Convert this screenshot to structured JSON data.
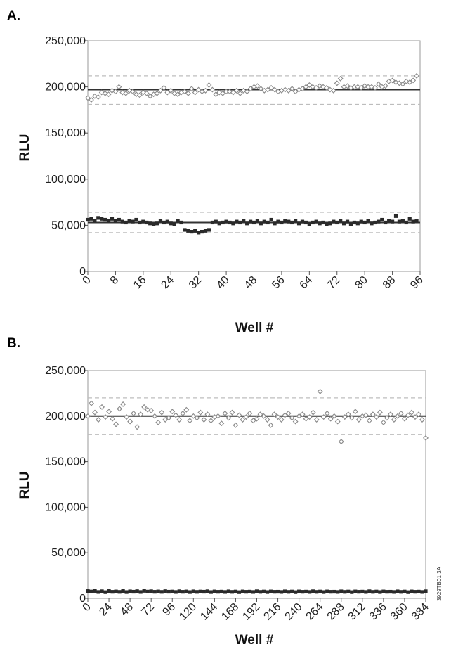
{
  "figure_code": "3929TB01 3A",
  "colors": {
    "high_series": "#8a8a8a",
    "low_series": "#2a2a2a",
    "mean_line": "#333333",
    "sd_line": "#bdbdbd",
    "frame": "#9a9a9a"
  },
  "chart_data": [
    {
      "panel_label": "A.",
      "type": "scatter",
      "xlabel": "Well #",
      "ylabel": "RLU",
      "xlim": [
        0,
        96
      ],
      "ylim": [
        0,
        250000
      ],
      "x_ticks": [
        "0",
        "8",
        "16",
        "24",
        "32",
        "40",
        "48",
        "56",
        "64",
        "72",
        "80",
        "88",
        "96"
      ],
      "y_ticks": [
        "0",
        "50,000",
        "100,000",
        "150,000",
        "200,000",
        "250,000"
      ],
      "grid": false,
      "reference_lines": [
        {
          "y": 197000,
          "style": "solid"
        },
        {
          "y": 212000,
          "style": "dashed"
        },
        {
          "y": 181000,
          "style": "dashed"
        },
        {
          "y": 53000,
          "style": "solid"
        },
        {
          "y": 64000,
          "style": "dashed"
        },
        {
          "y": 42000,
          "style": "dashed"
        }
      ],
      "series": [
        {
          "marker": "open-diamond",
          "x": [
            0,
            1,
            2,
            3,
            4,
            5,
            6,
            7,
            8,
            9,
            10,
            11,
            12,
            13,
            14,
            15,
            16,
            17,
            18,
            19,
            20,
            21,
            22,
            23,
            24,
            25,
            26,
            27,
            28,
            29,
            30,
            31,
            32,
            33,
            34,
            35,
            36,
            37,
            38,
            39,
            40,
            41,
            42,
            43,
            44,
            45,
            46,
            47,
            48,
            49,
            50,
            51,
            52,
            53,
            54,
            55,
            56,
            57,
            58,
            59,
            60,
            61,
            62,
            63,
            64,
            65,
            66,
            67,
            68,
            69,
            70,
            71,
            72,
            73,
            74,
            75,
            76,
            77,
            78,
            79,
            80,
            81,
            82,
            83,
            84,
            85,
            86,
            87,
            88,
            89,
            90,
            91,
            92,
            93,
            94,
            95
          ],
          "y": [
            188000,
            186000,
            190000,
            189000,
            194000,
            193000,
            192000,
            196000,
            195000,
            200000,
            194000,
            193000,
            196000,
            195000,
            192000,
            191000,
            194000,
            193000,
            190000,
            192000,
            193000,
            196000,
            199000,
            194000,
            196000,
            193000,
            192000,
            194000,
            195000,
            193000,
            198000,
            194000,
            197000,
            195000,
            196000,
            202000,
            197000,
            192000,
            194000,
            193000,
            195000,
            195000,
            194000,
            196000,
            193000,
            196000,
            195000,
            198000,
            200000,
            201000,
            198000,
            196000,
            197000,
            199000,
            197000,
            195000,
            196000,
            197000,
            196000,
            198000,
            195000,
            197000,
            198000,
            200000,
            202000,
            200000,
            199000,
            201000,
            200000,
            199000,
            197000,
            196000,
            204000,
            209000,
            200000,
            201000,
            199000,
            200000,
            200000,
            199000,
            201000,
            200000,
            200000,
            199000,
            203000,
            200000,
            201000,
            206000,
            207000,
            205000,
            204000,
            203000,
            206000,
            205000,
            207000,
            212000
          ]
        },
        {
          "marker": "filled-square",
          "x": [
            0,
            1,
            2,
            3,
            4,
            5,
            6,
            7,
            8,
            9,
            10,
            11,
            12,
            13,
            14,
            15,
            16,
            17,
            18,
            19,
            20,
            21,
            22,
            23,
            24,
            25,
            26,
            27,
            28,
            29,
            30,
            31,
            32,
            33,
            34,
            35,
            36,
            37,
            38,
            39,
            40,
            41,
            42,
            43,
            44,
            45,
            46,
            47,
            48,
            49,
            50,
            51,
            52,
            53,
            54,
            55,
            56,
            57,
            58,
            59,
            60,
            61,
            62,
            63,
            64,
            65,
            66,
            67,
            68,
            69,
            70,
            71,
            72,
            73,
            74,
            75,
            76,
            77,
            78,
            79,
            80,
            81,
            82,
            83,
            84,
            85,
            86,
            87,
            88,
            89,
            90,
            91,
            92,
            93,
            94,
            95
          ],
          "y": [
            56000,
            57000,
            55000,
            58000,
            57000,
            56000,
            55000,
            57000,
            55000,
            56000,
            54000,
            53000,
            55000,
            54000,
            56000,
            53000,
            54000,
            53000,
            52000,
            51000,
            52000,
            55000,
            53000,
            54000,
            52000,
            51000,
            55000,
            53000,
            45000,
            44000,
            43000,
            44000,
            42000,
            43000,
            44000,
            45000,
            53000,
            54000,
            52000,
            53000,
            54000,
            53000,
            52000,
            54000,
            53000,
            55000,
            52000,
            54000,
            53000,
            55000,
            52000,
            54000,
            53000,
            56000,
            52000,
            54000,
            53000,
            55000,
            54000,
            53000,
            55000,
            52000,
            54000,
            53000,
            51000,
            53000,
            54000,
            52000,
            53000,
            51000,
            52000,
            54000,
            53000,
            55000,
            52000,
            54000,
            51000,
            53000,
            52000,
            54000,
            53000,
            55000,
            52000,
            53000,
            54000,
            56000,
            53000,
            55000,
            54000,
            60000,
            54000,
            55000,
            53000,
            57000,
            54000,
            55000
          ]
        }
      ]
    },
    {
      "panel_label": "B.",
      "type": "scatter",
      "xlabel": "Well #",
      "ylabel": "RLU",
      "xlim": [
        0,
        384
      ],
      "ylim": [
        0,
        250000
      ],
      "x_ticks": [
        "0",
        "24",
        "48",
        "72",
        "96",
        "120",
        "144",
        "168",
        "192",
        "216",
        "240",
        "264",
        "288",
        "312",
        "336",
        "360",
        "384"
      ],
      "y_ticks": [
        "0",
        "50,000",
        "100,000",
        "150,000",
        "200,000",
        "250,000"
      ],
      "grid": false,
      "reference_lines": [
        {
          "y": 200000,
          "style": "solid"
        },
        {
          "y": 220000,
          "style": "dashed"
        },
        {
          "y": 180000,
          "style": "dashed"
        }
      ],
      "series": [
        {
          "marker": "open-diamond",
          "x": [
            0,
            4,
            8,
            12,
            16,
            20,
            24,
            28,
            32,
            36,
            40,
            44,
            48,
            52,
            56,
            60,
            64,
            68,
            72,
            76,
            80,
            84,
            88,
            92,
            96,
            100,
            104,
            108,
            112,
            116,
            120,
            124,
            128,
            132,
            136,
            140,
            144,
            148,
            152,
            156,
            160,
            164,
            168,
            172,
            176,
            180,
            184,
            188,
            192,
            196,
            200,
            204,
            208,
            212,
            216,
            220,
            224,
            228,
            232,
            236,
            240,
            244,
            248,
            252,
            256,
            260,
            264,
            268,
            272,
            276,
            280,
            284,
            288,
            292,
            296,
            300,
            304,
            308,
            312,
            316,
            320,
            324,
            328,
            332,
            336,
            340,
            344,
            348,
            352,
            356,
            360,
            364,
            368,
            372,
            376,
            380,
            384
          ],
          "y": [
            200000,
            214000,
            204000,
            196000,
            210000,
            199000,
            205000,
            197000,
            191000,
            208000,
            213000,
            199000,
            194000,
            203000,
            188000,
            202000,
            210000,
            207000,
            206000,
            200000,
            193000,
            204000,
            196000,
            198000,
            205000,
            201000,
            196000,
            203000,
            207000,
            195000,
            200000,
            198000,
            204000,
            196000,
            202000,
            195000,
            199000,
            200000,
            192000,
            203000,
            198000,
            204000,
            190000,
            201000,
            196000,
            199000,
            203000,
            195000,
            197000,
            202000,
            200000,
            196000,
            190000,
            202000,
            199000,
            196000,
            201000,
            203000,
            198000,
            194000,
            200000,
            202000,
            197000,
            199000,
            204000,
            196000,
            227000,
            199000,
            203000,
            197000,
            200000,
            194000,
            172000,
            199000,
            202000,
            198000,
            205000,
            196000,
            200000,
            201000,
            195000,
            202000,
            199000,
            204000,
            193000,
            198000,
            202000,
            196000,
            200000,
            203000,
            197000,
            201000,
            204000,
            199000,
            202000,
            196000,
            176000
          ]
        },
        {
          "marker": "filled-square",
          "x": [
            0,
            4,
            8,
            12,
            16,
            20,
            24,
            28,
            32,
            36,
            40,
            44,
            48,
            52,
            56,
            60,
            64,
            68,
            72,
            76,
            80,
            84,
            88,
            92,
            96,
            100,
            104,
            108,
            112,
            116,
            120,
            124,
            128,
            132,
            136,
            140,
            144,
            148,
            152,
            156,
            160,
            164,
            168,
            172,
            176,
            180,
            184,
            188,
            192,
            196,
            200,
            204,
            208,
            212,
            216,
            220,
            224,
            228,
            232,
            236,
            240,
            244,
            248,
            252,
            256,
            260,
            264,
            268,
            272,
            276,
            280,
            284,
            288,
            292,
            296,
            300,
            304,
            308,
            312,
            316,
            320,
            324,
            328,
            332,
            336,
            340,
            344,
            348,
            352,
            356,
            360,
            364,
            368,
            372,
            376,
            380,
            384
          ],
          "y": [
            8000,
            7500,
            8200,
            7000,
            7800,
            6800,
            8000,
            7200,
            7600,
            7100,
            8100,
            6900,
            7700,
            7300,
            7900,
            7000,
            8300,
            7400,
            7800,
            7200,
            7600,
            7100,
            7900,
            7300,
            7500,
            7000,
            7800,
            7200,
            7600,
            6900,
            7700,
            7100,
            7500,
            7300,
            7800,
            6900,
            7600,
            7200,
            7400,
            7000,
            7700,
            7100,
            7500,
            6800,
            7600,
            7200,
            7400,
            7000,
            7800,
            7100,
            7500,
            6900,
            7600,
            7200,
            7300,
            7000,
            7700,
            7100,
            7500,
            6800,
            7600,
            7200,
            7400,
            7000,
            7800,
            7100,
            7500,
            6900,
            7600,
            7200,
            7300,
            7000,
            7700,
            7100,
            7500,
            6800,
            7600,
            7200,
            7400,
            7000,
            7800,
            7100,
            7500,
            6900,
            7600,
            7200,
            7300,
            7000,
            7700,
            7100,
            7500,
            6800,
            7600,
            7200,
            7400,
            7000,
            7800
          ]
        }
      ]
    }
  ]
}
